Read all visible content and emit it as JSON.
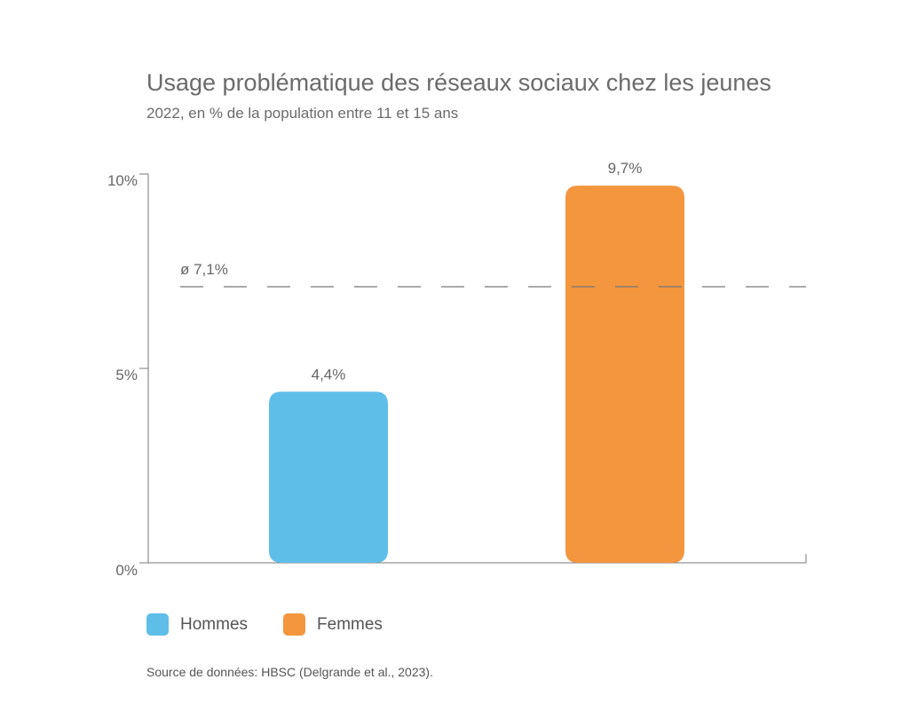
{
  "chart_data": {
    "type": "bar",
    "title": "Usage problématique des réseaux sociaux chez les jeunes",
    "subtitle": "2022, en % de la population entre 11 et 15 ans",
    "categories": [
      "Hommes",
      "Femmes"
    ],
    "values": [
      4.4,
      9.7
    ],
    "value_labels": [
      "4,4%",
      "9,7%"
    ],
    "colors": [
      "#5ebee8",
      "#f3963e"
    ],
    "ylim": [
      0,
      10
    ],
    "yticks": [
      0,
      5,
      10
    ],
    "ytick_labels": [
      "0%",
      "5%",
      "10%"
    ],
    "grid": false,
    "reference_line": {
      "value": 7.1,
      "label": "ø 7,1%",
      "style": "dashed"
    },
    "legend": {
      "placement": "bottom-left",
      "entries": [
        {
          "label": "Hommes",
          "color": "#5ebee8"
        },
        {
          "label": "Femmes",
          "color": "#f3963e"
        }
      ]
    },
    "source": "Source de données: HBSC (Delgrande et al., 2023)."
  }
}
